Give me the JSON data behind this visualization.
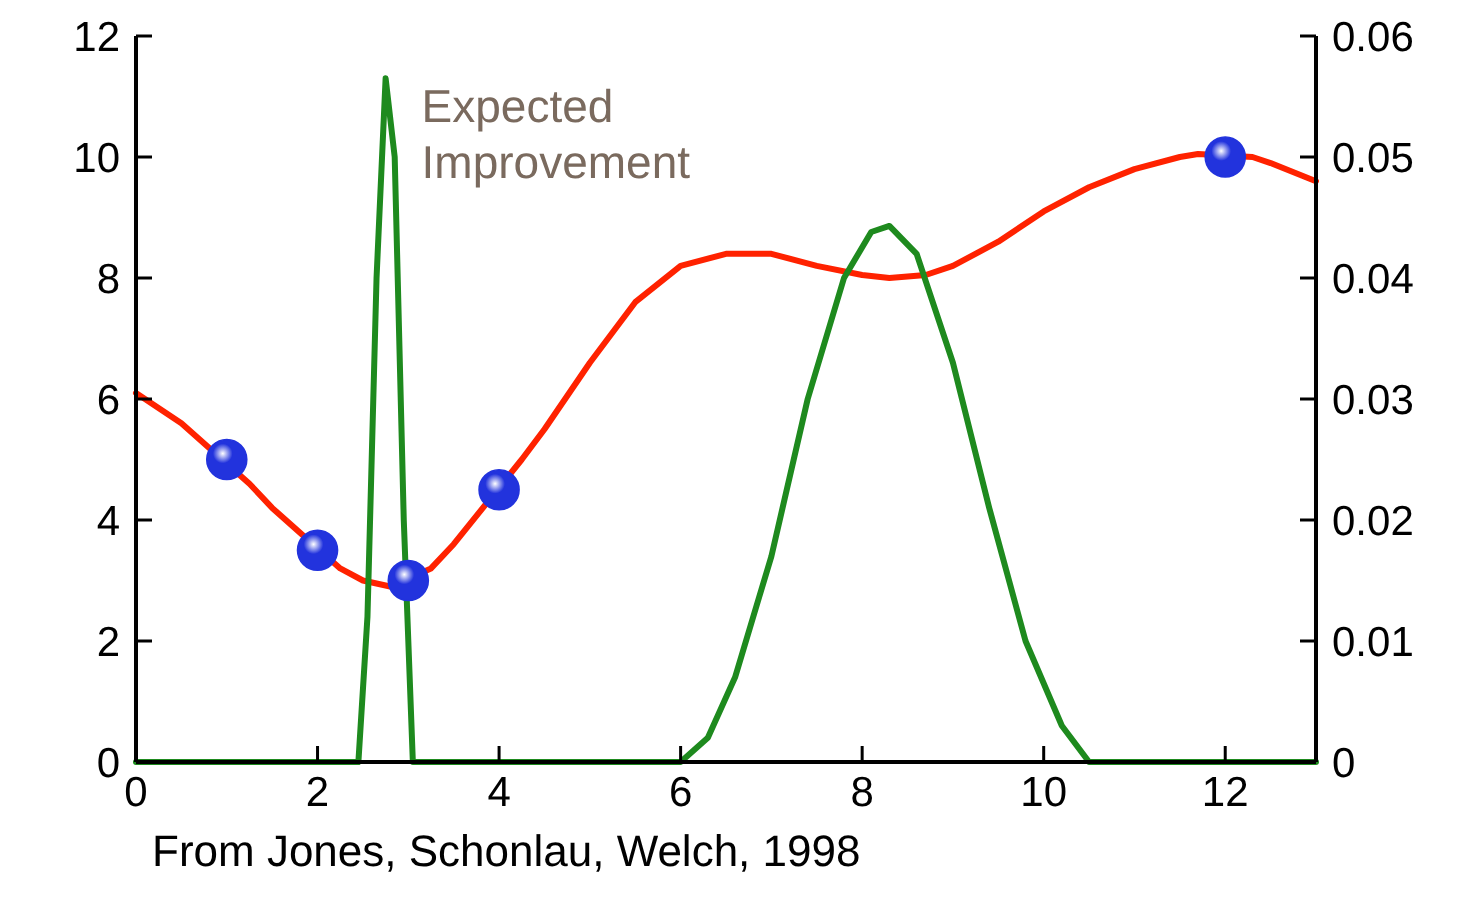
{
  "chart_data": {
    "type": "line",
    "xlim": [
      0,
      13
    ],
    "xticks": [
      0,
      2,
      4,
      6,
      8,
      10,
      12
    ],
    "ylim": [
      0,
      12
    ],
    "yticks": [
      0,
      2,
      4,
      6,
      8,
      10,
      12
    ],
    "y2lim": [
      0,
      0.06
    ],
    "y2ticks": [
      0,
      0.01,
      0.02,
      0.03,
      0.04,
      0.05,
      0.06
    ],
    "grid": false,
    "annotations": [
      "From Jones, Schonlau, Welch, 1998"
    ],
    "series": [
      {
        "color": "#ff2200",
        "x": [
          0,
          0.5,
          1.25,
          1.5,
          2.25,
          2.5,
          2.8,
          3.25,
          3.5,
          4.25,
          4.5,
          5,
          5.5,
          6,
          6.5,
          7,
          7.5,
          8,
          8.3,
          8.7,
          9,
          9.5,
          10,
          10.5,
          11,
          11.5,
          11.7,
          12.3,
          12.5,
          13
        ],
        "values": [
          6.1,
          5.6,
          4.6,
          4.2,
          3.2,
          3.0,
          2.9,
          3.2,
          3.6,
          5.0,
          5.5,
          6.6,
          7.6,
          8.2,
          8.4,
          8.4,
          8.2,
          8.05,
          8.0,
          8.05,
          8.2,
          8.6,
          9.1,
          9.5,
          9.8,
          10.0,
          10.05,
          10.0,
          9.9,
          9.6
        ]
      },
      {
        "name": "Expected Improvement",
        "axis": "y2",
        "color": "#1e8a1e",
        "x": [
          0,
          2.45,
          2.55,
          2.65,
          2.75,
          2.85,
          2.95,
          3.05,
          6,
          6.3,
          6.6,
          7,
          7.4,
          7.8,
          8.1,
          8.3,
          8.6,
          9,
          9.4,
          9.8,
          10.2,
          10.5,
          13
        ],
        "values": [
          0,
          0,
          0.012,
          0.04,
          0.0565,
          0.05,
          0.02,
          0,
          0,
          0.002,
          0.007,
          0.017,
          0.03,
          0.04,
          0.0438,
          0.0443,
          0.042,
          0.033,
          0.021,
          0.01,
          0.003,
          0,
          0
        ]
      },
      {
        "type": "scatter",
        "marker": "circle",
        "color": "#2233dd",
        "x": [
          1,
          2,
          3,
          4,
          12
        ],
        "values": [
          5,
          3.5,
          3,
          4.5,
          10
        ]
      }
    ]
  }
}
